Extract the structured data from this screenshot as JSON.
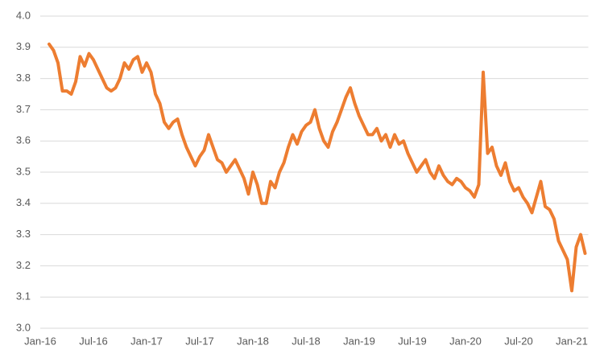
{
  "chart_data": {
    "type": "line",
    "categories": [
      "Jan-16",
      null,
      null,
      null,
      null,
      null,
      null,
      null,
      null,
      null,
      null,
      null,
      "Jul-16",
      null,
      null,
      null,
      null,
      null,
      null,
      null,
      null,
      null,
      null,
      null,
      "Jan-17",
      null,
      null,
      null,
      null,
      null,
      null,
      null,
      null,
      null,
      null,
      null,
      "Jul-17",
      null,
      null,
      null,
      null,
      null,
      null,
      null,
      null,
      null,
      null,
      null,
      "Jan-18",
      null,
      null,
      null,
      null,
      null,
      null,
      null,
      null,
      null,
      null,
      null,
      "Jul-18",
      null,
      null,
      null,
      null,
      null,
      null,
      null,
      null,
      null,
      null,
      null,
      "Jan-19",
      null,
      null,
      null,
      null,
      null,
      null,
      null,
      null,
      null,
      null,
      null,
      "Jul-19",
      null,
      null,
      null,
      null,
      null,
      null,
      null,
      null,
      null,
      null,
      null,
      "Jan-20",
      null,
      null,
      null,
      null,
      null,
      null,
      null,
      null,
      null,
      null,
      null,
      "Jul-20",
      null,
      null,
      null,
      null,
      null,
      null,
      null,
      null,
      null,
      null,
      null,
      "Jan-21",
      null,
      null,
      null
    ],
    "values": [
      null,
      null,
      3.91,
      3.89,
      3.85,
      3.76,
      3.76,
      3.75,
      3.79,
      3.87,
      3.84,
      3.88,
      3.86,
      3.83,
      3.8,
      3.77,
      3.76,
      3.77,
      3.8,
      3.85,
      3.83,
      3.86,
      3.87,
      3.82,
      3.85,
      3.82,
      3.75,
      3.72,
      3.66,
      3.64,
      3.66,
      3.67,
      3.62,
      3.58,
      3.55,
      3.52,
      3.55,
      3.57,
      3.62,
      3.58,
      3.54,
      3.53,
      3.5,
      3.52,
      3.54,
      3.51,
      3.48,
      3.43,
      3.5,
      3.46,
      3.4,
      3.4,
      3.47,
      3.45,
      3.5,
      3.53,
      3.58,
      3.62,
      3.59,
      3.63,
      3.65,
      3.66,
      3.7,
      3.64,
      3.6,
      3.58,
      3.63,
      3.66,
      3.7,
      3.74,
      3.77,
      3.72,
      3.68,
      3.65,
      3.62,
      3.62,
      3.64,
      3.6,
      3.62,
      3.58,
      3.62,
      3.59,
      3.6,
      3.56,
      3.53,
      3.5,
      3.52,
      3.54,
      3.5,
      3.48,
      3.52,
      3.49,
      3.47,
      3.46,
      3.48,
      3.47,
      3.45,
      3.44,
      3.42,
      3.46,
      3.82,
      3.56,
      3.58,
      3.52,
      3.49,
      3.53,
      3.47,
      3.44,
      3.45,
      3.42,
      3.4,
      3.37,
      3.42,
      3.47,
      3.39,
      3.38,
      3.35,
      3.28,
      3.25,
      3.22,
      3.12,
      3.26,
      3.3,
      3.24
    ],
    "color": "#ed7d31",
    "ylim": [
      3.0,
      4.0
    ],
    "yticks": [
      {
        "value": 3.0,
        "label": "3.0"
      },
      3.1,
      3.2,
      3.3,
      3.4,
      3.5,
      3.6,
      3.7,
      3.8,
      3.9,
      {
        "value": 4.0,
        "label": "4.0"
      }
    ],
    "grid": true
  }
}
